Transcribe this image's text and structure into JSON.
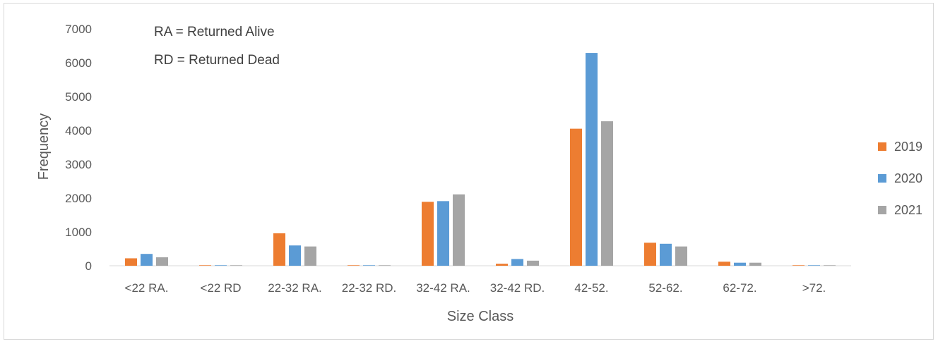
{
  "chart_data": {
    "type": "bar",
    "title": "",
    "xlabel": "Size Class",
    "ylabel": "Frequency",
    "ylim": [
      0,
      7000
    ],
    "yticks": [
      0,
      1000,
      2000,
      3000,
      4000,
      5000,
      6000,
      7000
    ],
    "grid": false,
    "legend_position": "right",
    "categories": [
      "<22 RA.",
      "<22 RD",
      "22-32 RA.",
      "22-32 RD.",
      "32-42 RA.",
      "32-42 RD.",
      "42-52.",
      "52-62.",
      "62-72.",
      ">72."
    ],
    "series": [
      {
        "name": "2019",
        "color": "#ed7d31",
        "values": [
          220,
          15,
          960,
          15,
          1890,
          60,
          4050,
          680,
          120,
          15
        ]
      },
      {
        "name": "2020",
        "color": "#5b9bd5",
        "values": [
          350,
          15,
          600,
          15,
          1910,
          200,
          6290,
          650,
          90,
          15
        ]
      },
      {
        "name": "2021",
        "color": "#a5a5a5",
        "values": [
          250,
          15,
          570,
          15,
          2110,
          150,
          4270,
          570,
          90,
          15
        ]
      }
    ],
    "annotations": [
      "RA = Returned Alive",
      "RD = Returned Dead"
    ]
  }
}
